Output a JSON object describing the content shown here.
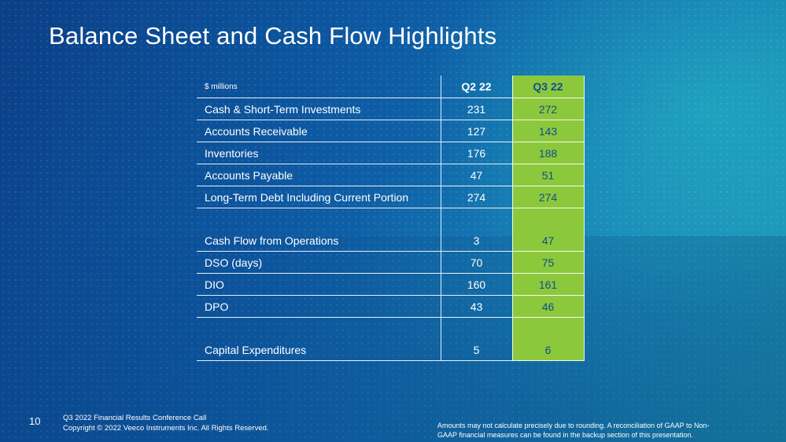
{
  "slide": {
    "title": "Balance Sheet and Cash Flow Highlights",
    "page_number": "10"
  },
  "table": {
    "unit_label": "$ millions",
    "columns": [
      "Q2 22",
      "Q3 22"
    ],
    "rows": [
      {
        "label": "Cash & Short-Term Investments",
        "q2": "231",
        "q3": "272"
      },
      {
        "label": "Accounts Receivable",
        "q2": "127",
        "q3": "143"
      },
      {
        "label": "Inventories",
        "q2": "176",
        "q3": "188"
      },
      {
        "label": "Accounts Payable",
        "q2": "47",
        "q3": "51"
      },
      {
        "label": "Long-Term Debt Including Current Portion",
        "q2": "274",
        "q3": "274"
      },
      {
        "label": "Cash Flow from Operations",
        "q2": "3",
        "q3": "47"
      },
      {
        "label": "DSO (days)",
        "q2": "70",
        "q3": "75"
      },
      {
        "label": "DIO",
        "q2": "160",
        "q3": "161"
      },
      {
        "label": "DPO",
        "q2": "43",
        "q3": "46"
      },
      {
        "label": "Capital Expenditures",
        "q2": "5",
        "q3": "6"
      }
    ]
  },
  "footer": {
    "line1": "Q3 2022 Financial Results Conference Call",
    "line2": "Copyright © 2022 Veeco Instruments Inc. All Rights Reserved.",
    "note_line1": "Amounts may not calculate precisely due to rounding.  A reconciliation of GAAP to Non-",
    "note_line2": "GAAP financial measures can be found in the backup section of this presentation."
  },
  "colors": {
    "highlight_column": "#8cc83c",
    "highlight_text": "#0f4f8f"
  }
}
